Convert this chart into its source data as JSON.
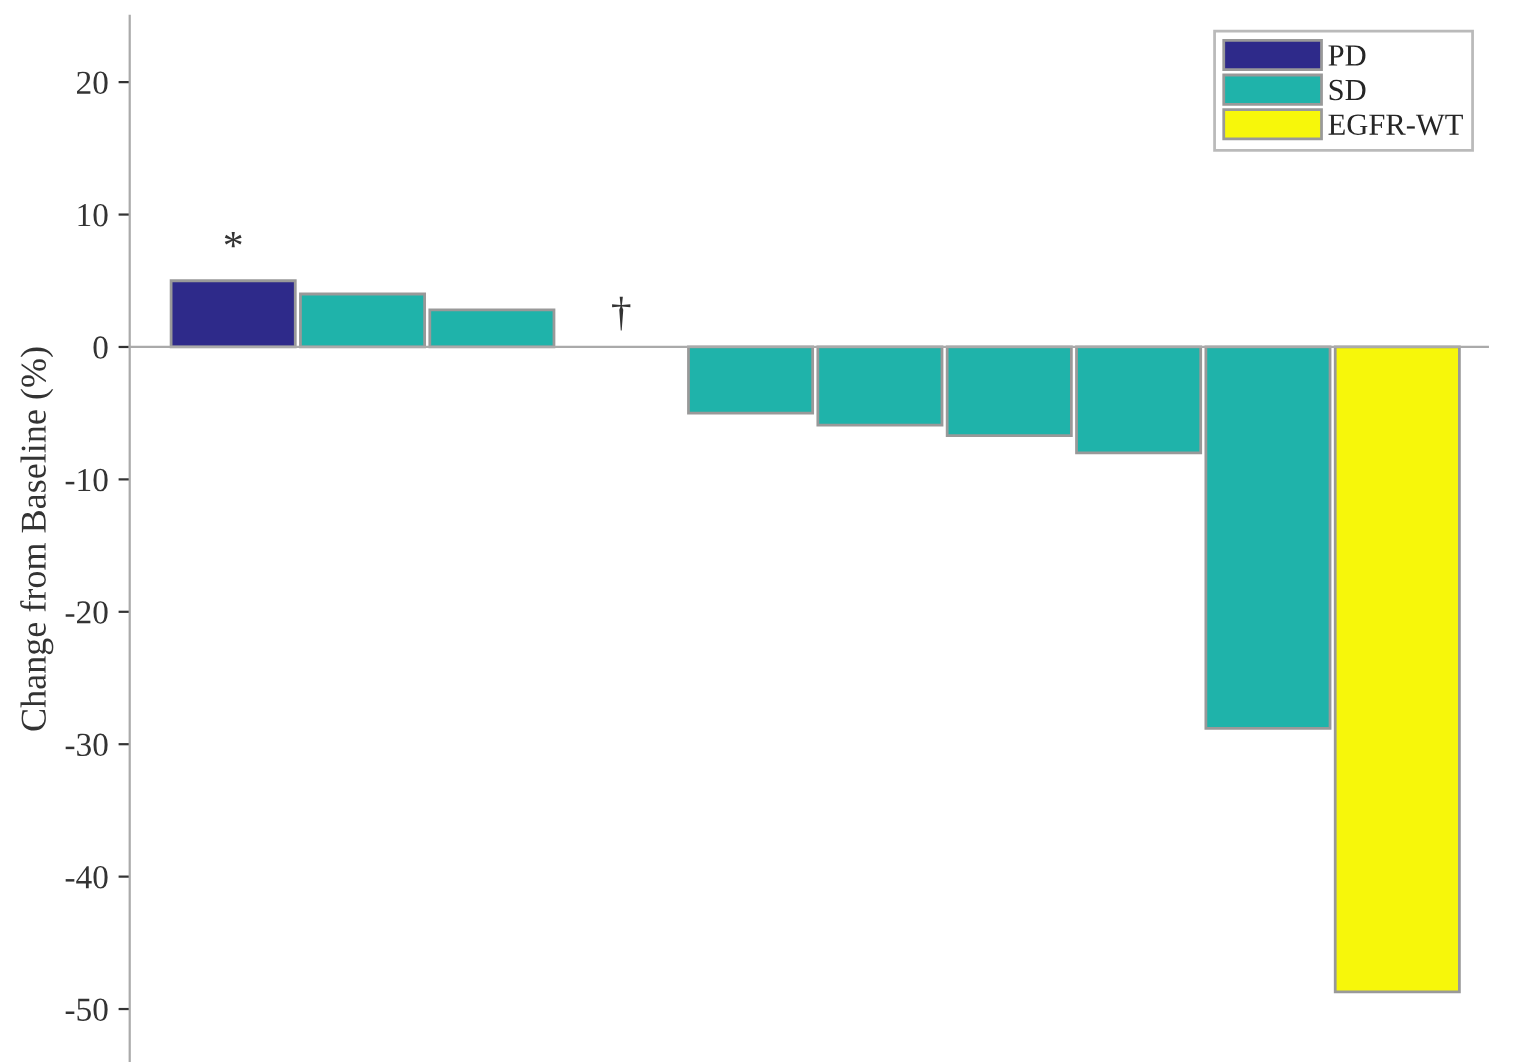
{
  "chart_data": {
    "type": "bar",
    "ylabel": "Change from Baseline (%)",
    "categories": [
      null,
      null,
      null,
      null,
      null,
      null,
      null,
      null,
      null,
      null
    ],
    "series": [
      {
        "name": "PD",
        "color": "#2e2a8a",
        "values": [
          5.0,
          null,
          null,
          null,
          null,
          null,
          null,
          null,
          null,
          null
        ]
      },
      {
        "name": "SD",
        "color": "#1fb3aa",
        "values": [
          null,
          4.0,
          2.8,
          null,
          -5.0,
          -5.9,
          -6.7,
          -8.0,
          -28.8,
          null
        ]
      },
      {
        "name": "EGFR-WT",
        "color": "#f7f70a",
        "values": [
          null,
          null,
          null,
          null,
          null,
          null,
          null,
          null,
          null,
          -48.7
        ]
      }
    ],
    "ylim": [
      -54,
      25
    ],
    "yticks": [
      -50,
      -40,
      -30,
      -20,
      -10,
      0,
      10,
      20
    ],
    "tick_labels": "y",
    "legend": "top right",
    "annotations": [
      "*",
      "†"
    ]
  }
}
